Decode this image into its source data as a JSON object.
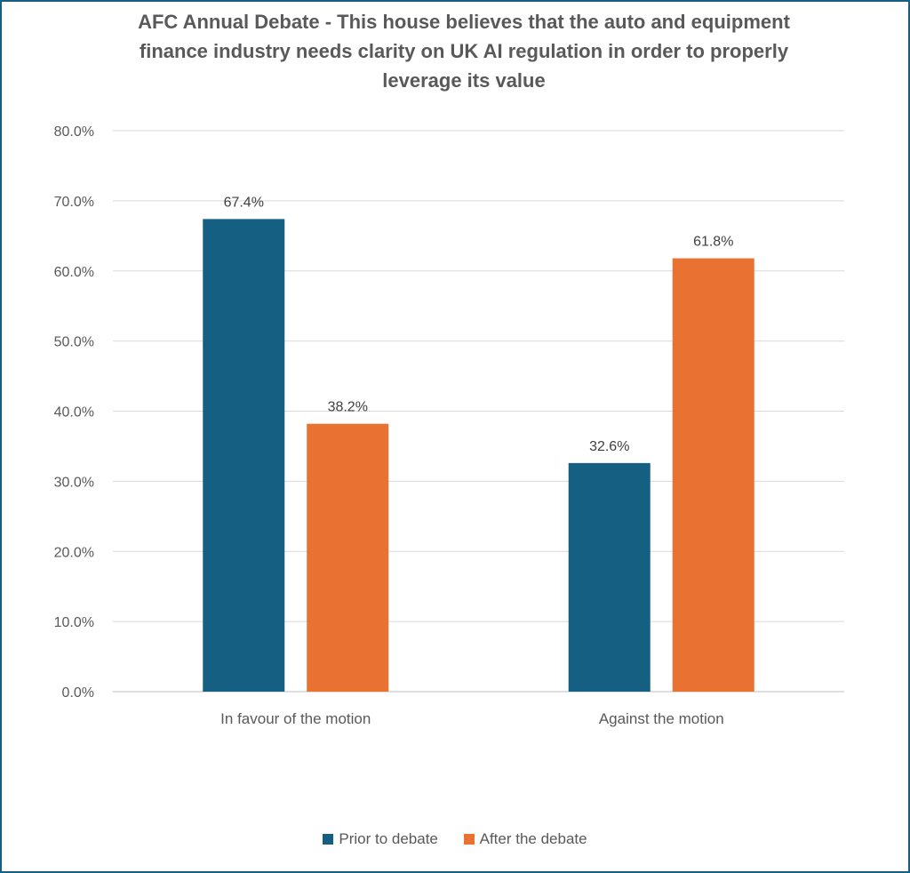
{
  "chart_data": {
    "type": "bar",
    "title": "AFC Annual Debate - This house believes that the auto and equipment finance industry needs clarity on UK AI regulation in order to properly leverage its value",
    "categories": [
      "In favour of the motion",
      "Against the motion"
    ],
    "series": [
      {
        "name": "Prior to debate",
        "values": [
          67.4,
          32.6
        ],
        "labels": [
          "67.4%",
          "32.6%"
        ],
        "color": "#156082"
      },
      {
        "name": "After the debate",
        "values": [
          38.2,
          61.8
        ],
        "labels": [
          "38.2%",
          "61.8%"
        ],
        "color": "#E97132"
      }
    ],
    "ylim": [
      0,
      80
    ],
    "yticks": [
      "0.0%",
      "10.0%",
      "20.0%",
      "30.0%",
      "40.0%",
      "50.0%",
      "60.0%",
      "70.0%",
      "80.0%"
    ],
    "xlabel": "",
    "ylabel": "",
    "grid": true,
    "legend": "bottom"
  }
}
